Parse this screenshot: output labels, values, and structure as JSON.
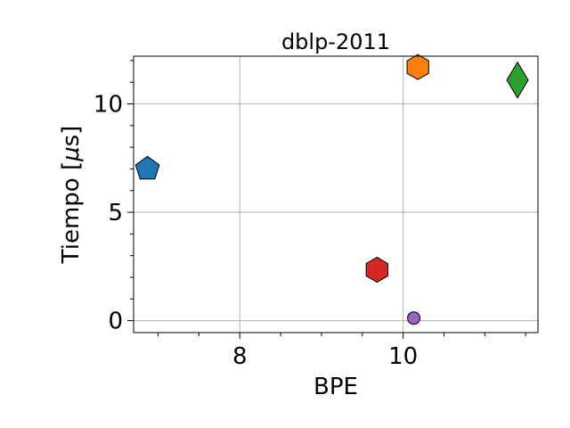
{
  "chart_data": {
    "type": "scatter",
    "title": "dblp-2011",
    "xlabel": "BPE",
    "ylabel_prefix": "Tiempo [",
    "ylabel_mu": "μ",
    "ylabel_suffix": "s]",
    "xlim": [
      6.7,
      11.65
    ],
    "ylim": [
      -0.55,
      12.2
    ],
    "xticks": [
      8,
      10
    ],
    "xtick_labels": [
      "8",
      "10"
    ],
    "xminor": [
      7.0,
      7.5,
      8.5,
      9.0,
      9.5,
      10.5,
      11.0,
      11.5
    ],
    "yticks": [
      0,
      5,
      10
    ],
    "ytick_labels": [
      "0",
      "5",
      "10"
    ],
    "yminor": [
      1,
      2,
      3,
      4,
      6,
      7,
      8,
      9,
      11,
      12
    ],
    "grid": true,
    "legend": "none",
    "points": [
      {
        "x": 6.87,
        "y": 7.0,
        "marker": "pentagon",
        "color": "#1f77b4"
      },
      {
        "x": 10.18,
        "y": 11.7,
        "marker": "hexagon",
        "color": "#ff7f0e"
      },
      {
        "x": 11.4,
        "y": 11.1,
        "marker": "diamond",
        "color": "#2ca02c"
      },
      {
        "x": 9.68,
        "y": 2.35,
        "marker": "hexagon",
        "color": "#d62728"
      },
      {
        "x": 10.13,
        "y": 0.12,
        "marker": "circle",
        "color": "#9467bd"
      }
    ]
  }
}
